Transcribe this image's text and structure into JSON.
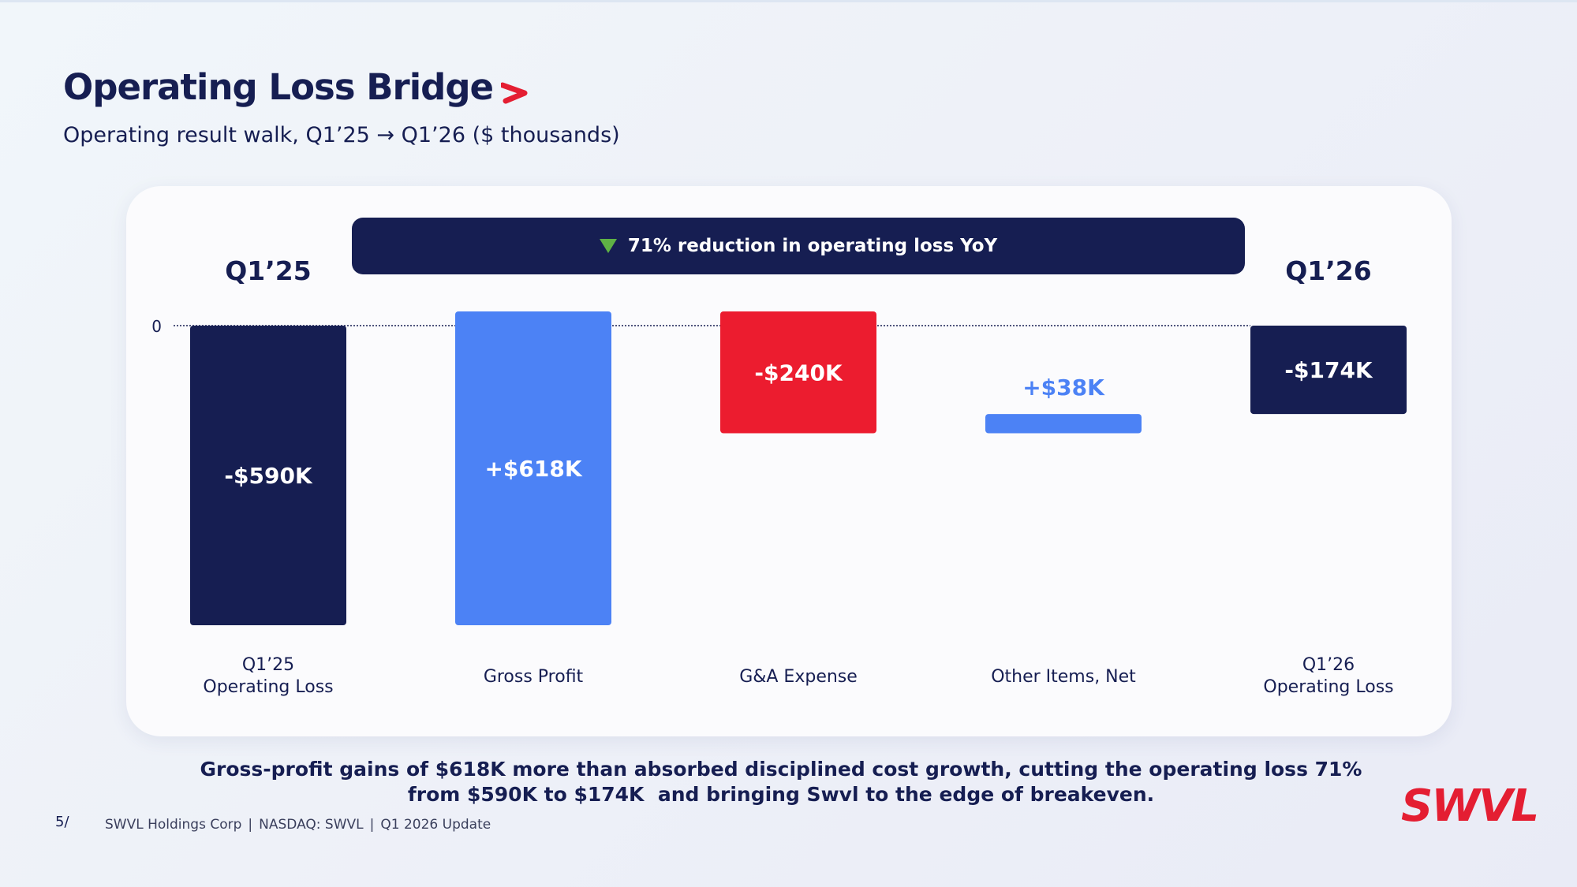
{
  "header": {
    "title": "Operating Loss Bridge",
    "subtitle": "Operating result walk, Q1’25 → Q1’26 ($ thousands)"
  },
  "banner": {
    "text": "71% reduction in operating loss  YoY",
    "icon": "down-triangle-icon",
    "icon_color": "#5fb245"
  },
  "chart_data": {
    "type": "waterfall",
    "title": "",
    "y_zero_label": "0",
    "ylim": [
      -600,
      40
    ],
    "start_label": "Q1’25",
    "end_label": "Q1’26",
    "bars": [
      {
        "category": [
          "Q1’25",
          "Operating Loss"
        ],
        "value": -590,
        "base": 0,
        "label": "-$590K",
        "kind": "total",
        "color": "#161e52"
      },
      {
        "category": [
          "Gross Profit"
        ],
        "value": 618,
        "base": -590,
        "label": "+$618K",
        "kind": "increase",
        "color": "#4c82f5"
      },
      {
        "category": [
          "G&A Expense"
        ],
        "value": -240,
        "base": 28,
        "label": "-$240K",
        "kind": "decrease",
        "color": "#ec1c2f"
      },
      {
        "category": [
          "Other Items, Net"
        ],
        "value": 38,
        "base": -212,
        "label": "+$38K",
        "kind": "increase",
        "color": "#4c82f5"
      },
      {
        "category": [
          "Q1’26",
          "Operating Loss"
        ],
        "value": -174,
        "base": 0,
        "label": "-$174K",
        "kind": "total",
        "color": "#161e52"
      }
    ]
  },
  "takeaway": {
    "line1": "Gross-profit gains of $618K more than absorbed disciplined cost growth, cutting the operating loss 71%",
    "line2": "from $590K to $174K  and bringing Swvl to the edge of breakeven."
  },
  "footer": {
    "page_number": "5/",
    "company": "SWVL Holdings Corp",
    "ticker": "NASDAQ: SWVL",
    "period": "Q1 2026 Update",
    "separator": "|"
  },
  "brand": {
    "logo_text": "SWVL",
    "colors": {
      "navy": "#161e52",
      "blue": "#4c82f5",
      "red": "#ec1c2f",
      "green": "#5fb245"
    }
  }
}
